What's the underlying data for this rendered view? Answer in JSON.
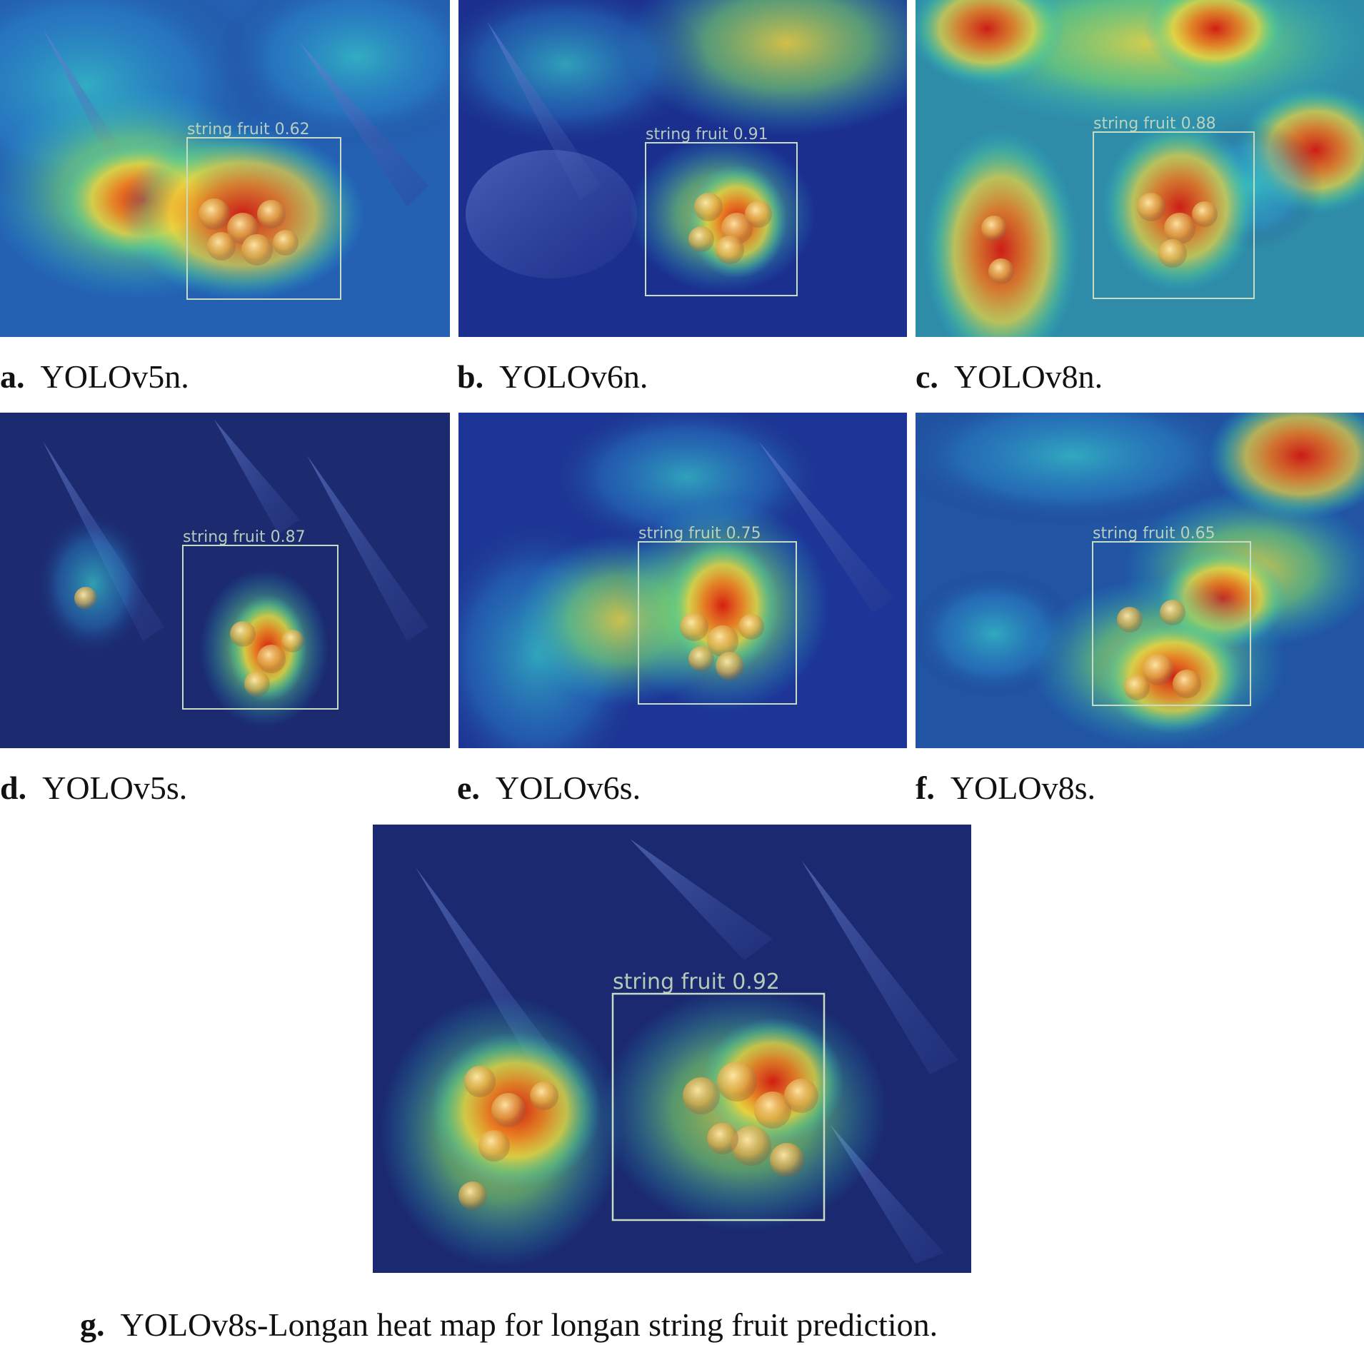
{
  "panels": [
    {
      "id": "a",
      "letter": "a.",
      "caption": "YOLOv5n.",
      "detection_label": "string fruit 0.62"
    },
    {
      "id": "b",
      "letter": "b.",
      "caption": "YOLOv6n.",
      "detection_label": "string fruit 0.91"
    },
    {
      "id": "c",
      "letter": "c.",
      "caption": "YOLOv8n.",
      "detection_label": "string fruit 0.88"
    },
    {
      "id": "d",
      "letter": "d.",
      "caption": "YOLOv5s.",
      "detection_label": "string fruit 0.87"
    },
    {
      "id": "e",
      "letter": "e.",
      "caption": "YOLOv6s.",
      "detection_label": "string fruit 0.75"
    },
    {
      "id": "f",
      "letter": "f.",
      "caption": "YOLOv8s.",
      "detection_label": "string fruit 0.65"
    },
    {
      "id": "g",
      "letter": "g.",
      "caption": "YOLOv8s-Longan heat map for longan string fruit prediction.",
      "detection_label": "string fruit 0.92"
    }
  ],
  "colors": {
    "heat_cold": "#1b2a78",
    "heat_cool": "#1fb5d6",
    "heat_mid": "#7fe06a",
    "heat_warm": "#f3d83c",
    "heat_hot": "#e0281c",
    "box_outline": "#c7dcc0"
  }
}
